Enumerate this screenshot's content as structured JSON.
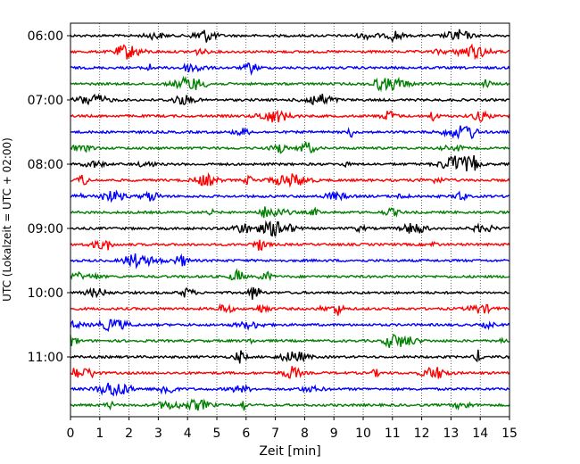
{
  "chart_data": {
    "type": "line",
    "title": "",
    "xlabel": "Zeit  [min]",
    "ylabel": "UTC (Lokalzeit = UTC + 02:00)",
    "xlim": [
      0,
      15
    ],
    "x_ticks": [
      0,
      1,
      2,
      3,
      4,
      5,
      6,
      7,
      8,
      9,
      10,
      11,
      12,
      13,
      14,
      15
    ],
    "y_tick_labels": [
      "06:00",
      "07:00",
      "08:00",
      "09:00",
      "10:00",
      "11:00"
    ],
    "trace_interval_min": 15,
    "grid": "vertical dotted",
    "trace_colors": [
      "#000000",
      "#ff0000",
      "#0000ff",
      "#008000"
    ],
    "traces": [
      {
        "start": "06:00",
        "color": "#000000"
      },
      {
        "start": "06:15",
        "color": "#ff0000"
      },
      {
        "start": "06:30",
        "color": "#0000ff"
      },
      {
        "start": "06:45",
        "color": "#008000"
      },
      {
        "start": "07:00",
        "color": "#000000"
      },
      {
        "start": "07:15",
        "color": "#ff0000"
      },
      {
        "start": "07:30",
        "color": "#0000ff"
      },
      {
        "start": "07:45",
        "color": "#008000"
      },
      {
        "start": "08:00",
        "color": "#000000"
      },
      {
        "start": "08:15",
        "color": "#ff0000"
      },
      {
        "start": "08:30",
        "color": "#0000ff"
      },
      {
        "start": "08:45",
        "color": "#008000"
      },
      {
        "start": "09:00",
        "color": "#000000"
      },
      {
        "start": "09:15",
        "color": "#ff0000"
      },
      {
        "start": "09:30",
        "color": "#0000ff"
      },
      {
        "start": "09:45",
        "color": "#008000"
      },
      {
        "start": "10:00",
        "color": "#000000"
      },
      {
        "start": "10:15",
        "color": "#ff0000"
      },
      {
        "start": "10:30",
        "color": "#0000ff"
      },
      {
        "start": "10:45",
        "color": "#008000"
      },
      {
        "start": "11:00",
        "color": "#000000"
      },
      {
        "start": "11:15",
        "color": "#ff0000"
      },
      {
        "start": "11:30",
        "color": "#0000ff"
      },
      {
        "start": "11:45",
        "color": "#008000"
      }
    ]
  }
}
